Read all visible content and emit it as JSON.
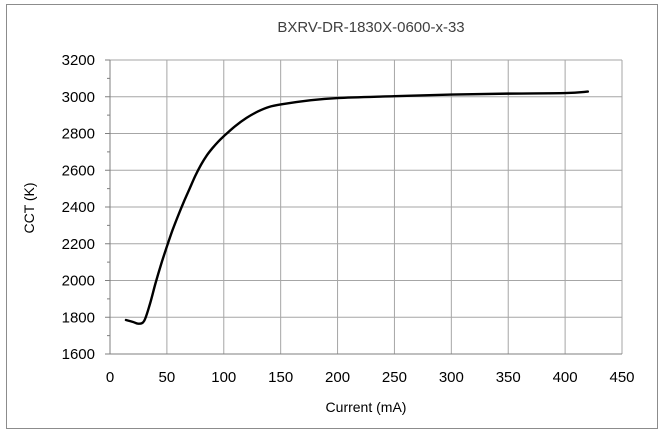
{
  "chart_data": {
    "type": "line",
    "title": "BXRV-DR-1830X-0600-x-33",
    "xlabel": "Current (mA)",
    "ylabel": "CCT (K)",
    "xlim": [
      0,
      450
    ],
    "ylim": [
      1600,
      3200
    ],
    "x_ticks": [
      0,
      50,
      100,
      150,
      200,
      250,
      300,
      350,
      400,
      450
    ],
    "y_ticks": [
      1600,
      1800,
      2000,
      2200,
      2400,
      2600,
      2800,
      3000,
      3200
    ],
    "grid": true,
    "legend": "none",
    "series": [
      {
        "color": "#000000",
        "x": [
          14,
          20,
          25,
          30,
          35,
          40,
          45,
          50,
          55,
          60,
          65,
          70,
          75,
          80,
          85,
          90,
          95,
          100,
          110,
          120,
          130,
          140,
          150,
          175,
          200,
          250,
          300,
          350,
          400,
          420
        ],
        "y": [
          1785,
          1775,
          1765,
          1780,
          1870,
          1985,
          2090,
          2185,
          2275,
          2355,
          2430,
          2500,
          2570,
          2630,
          2680,
          2720,
          2755,
          2785,
          2840,
          2885,
          2920,
          2945,
          2958,
          2980,
          2993,
          3003,
          3012,
          3017,
          3020,
          3028
        ]
      }
    ]
  }
}
